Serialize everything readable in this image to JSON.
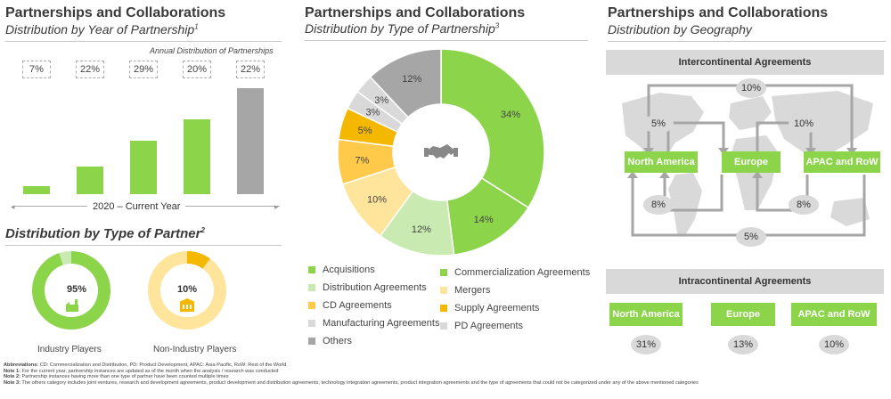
{
  "left": {
    "title": "Partnerships and Collaborations",
    "subtitle": "Distribution by Year of Partnership",
    "subtitle_note": "1",
    "chart_caption": "Annual Distribution of Partnerships",
    "axis_label": "2020 – Current Year",
    "partner_title": "Distribution by Type of Partner",
    "partner_note": "2"
  },
  "middle": {
    "title": "Partnerships and Collaborations",
    "subtitle": "Distribution by Type of Partnership",
    "subtitle_note": "3"
  },
  "right": {
    "title": "Partnerships and Collaborations",
    "subtitle": "Distribution by Geography",
    "inter_banner": "Intercontinental Agreements",
    "intra_banner": "Intracontinental Agreements",
    "regions": [
      "North America",
      "Europe",
      "APAC and RoW"
    ],
    "inter_links": [
      {
        "label": "10%",
        "between": "North America – APAC and RoW (top)"
      },
      {
        "label": "5%",
        "between": "North America – Europe (top)"
      },
      {
        "label": "10%",
        "between": "Europe – APAC and RoW (top)"
      },
      {
        "label": "8%",
        "between": "North America – Europe (bottom)"
      },
      {
        "label": "8%",
        "between": "Europe – APAC and RoW (bottom)"
      },
      {
        "label": "5%",
        "between": "North America – APAC and RoW (bottom)"
      }
    ],
    "intra": [
      {
        "region": "North America",
        "value": "31%"
      },
      {
        "region": "Europe",
        "value": "13%"
      },
      {
        "region": "APAC and RoW",
        "value": "10%"
      }
    ]
  },
  "notes": {
    "abbr_label": "Abbreviations:",
    "abbr_text": "CD: Commercialization and Distribution, PD: Product Development, APAC: Asia-Pacific, RoW: Rest of the World",
    "n1_label": "Note 1:",
    "n1_text": "For the current year, partnership instances are updated as of the month when the analysis / research was conducted",
    "n2_label": "Note 2:",
    "n2_text": "Partnership instances having more than one type of partner have been counted multiple times",
    "n3_label": "Note 3:",
    "n3_text": "The others category includes joint ventures, research and development agreements, product development and distribution agreements, technology integration agreements, product integration agreements and the type of agreements that could not be categorized under any of the above mentioned categories"
  },
  "colors": {
    "green": "#8cd44a",
    "light_green": "#c9eab0",
    "lighter_green": "#def3cc",
    "yellow": "#ffe49c",
    "orange_yellow": "#ffca4a",
    "gold": "#f5b800",
    "gray_light": "#d9d9d9",
    "gray": "#a6a6a6",
    "bar_last": "#a6a6a6"
  },
  "icons": {
    "donut_center": "handshake-icon",
    "industry": "factory-icon",
    "non_industry": "building-icon"
  },
  "chart_data": [
    {
      "type": "bar",
      "categories": [
        "",
        "",
        "",
        "",
        ""
      ],
      "values": [
        7,
        22,
        29,
        20,
        22
      ],
      "labels": [
        "7%",
        "22%",
        "29%",
        "20%",
        "22%"
      ],
      "bar_relative_heights": [
        0.07,
        0.25,
        0.48,
        0.68,
        0.96
      ],
      "xlabel": "2020 – Current Year",
      "title": "Annual Distribution of Partnerships"
    },
    {
      "type": "pie",
      "categories": [
        "Acquisitions",
        "Commercialization Agreements",
        "Distribution Agreements",
        "Mergers",
        "CD Agreements",
        "Supply Agreements",
        "Manufacturing Agreements",
        "PD Agreements",
        "Others"
      ],
      "values": [
        34,
        14,
        12,
        10,
        7,
        5,
        3,
        3,
        12
      ],
      "labels": [
        "34%",
        "14%",
        "12%",
        "10%",
        "7%",
        "5%",
        "3%",
        "3%",
        "12%"
      ],
      "colors": [
        "#8cd44a",
        "#8cd44a",
        "#c9eab0",
        "#ffe49c",
        "#ffca4a",
        "#f5b800",
        "#d9d9d9",
        "#d9d9d9",
        "#a6a6a6"
      ],
      "legend_order": [
        [
          "Acquisitions",
          "Commercialization Agreements"
        ],
        [
          "Distribution Agreements",
          "Mergers"
        ],
        [
          "CD Agreements",
          "Supply Agreements"
        ],
        [
          "Manufacturing Agreements",
          "PD Agreements"
        ],
        [
          "Others"
        ]
      ]
    },
    {
      "type": "pie",
      "name": "Industry Players",
      "values": [
        95,
        5
      ],
      "label": "95%",
      "colors": [
        "#8cd44a",
        "#c9eab0"
      ]
    },
    {
      "type": "pie",
      "name": "Non-Industry Players",
      "values": [
        10,
        90
      ],
      "label": "10%",
      "colors": [
        "#f5b800",
        "#ffe49c"
      ]
    }
  ]
}
